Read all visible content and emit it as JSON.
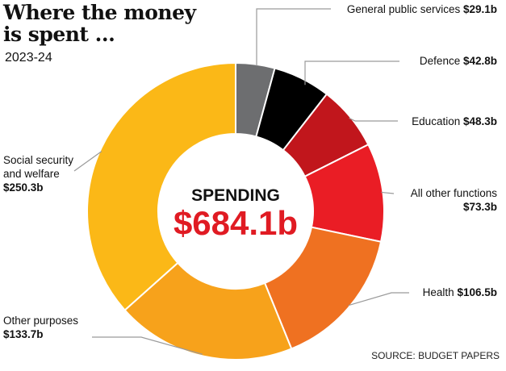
{
  "title": "Where the money is spent ...",
  "subtitle": "2023-24",
  "source": "SOURCE: BUDGET PAPERS",
  "center": {
    "label": "SPENDING",
    "total": "$684.1b"
  },
  "chart_data": {
    "type": "pie",
    "title": "Where the money is spent ...",
    "subtitle": "2023-24",
    "total": 684.1,
    "unit": "$b",
    "slices": [
      {
        "name": "General public services",
        "value": 29.1,
        "value_label": "$29.1b",
        "color": "#6d6e70"
      },
      {
        "name": "Defence",
        "value": 42.8,
        "value_label": "$42.8b",
        "color": "#000000"
      },
      {
        "name": "Education",
        "value": 48.3,
        "value_label": "$48.3b",
        "color": "#c1161c"
      },
      {
        "name": "All other functions",
        "value": 73.3,
        "value_label": "$73.3b",
        "color": "#ea1d25"
      },
      {
        "name": "Health",
        "value": 106.5,
        "value_label": "$106.5b",
        "color": "#ef7121"
      },
      {
        "name": "Other purposes",
        "value": 133.7,
        "value_label": "$133.7b",
        "color": "#f7a21b"
      },
      {
        "name": "Social security and welfare",
        "value": 250.3,
        "value_label": "$250.3b",
        "color": "#fbb817"
      }
    ],
    "legend": "leader-line labels around donut"
  }
}
